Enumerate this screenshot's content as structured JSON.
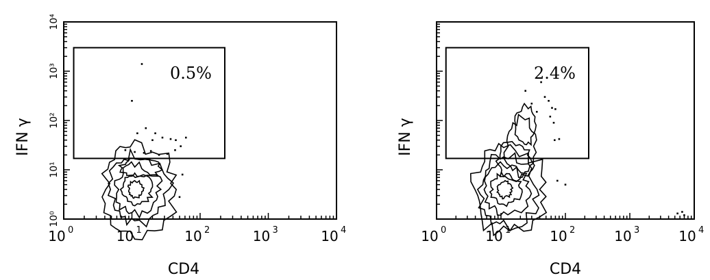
{
  "chart_data": [
    {
      "type": "scatter",
      "subtype": "flow-cytometry-contour",
      "xlabel": "CD4",
      "ylabel": "IFN γ",
      "x_scale": "log",
      "y_scale": "log",
      "xlim": [
        1,
        10000
      ],
      "ylim": [
        1,
        10000
      ],
      "x_ticks": [
        {
          "base": "10",
          "exp": "0"
        },
        {
          "base": "10",
          "exp": "1"
        },
        {
          "base": "10",
          "exp": "2"
        },
        {
          "base": "10",
          "exp": "3"
        },
        {
          "base": "10",
          "exp": "4"
        }
      ],
      "y_ticks": [
        "10⁰",
        "10¹",
        "10²",
        "10³",
        "10⁴"
      ],
      "gate": {
        "x": [
          1.4,
          230
        ],
        "y": [
          17,
          3000
        ],
        "label": "0.5%",
        "percent": 0.5
      },
      "population_center": [
        11,
        4
      ],
      "events_in_gate": [
        [
          14,
          1400
        ],
        [
          10,
          250
        ],
        [
          16,
          70
        ],
        [
          12,
          55
        ],
        [
          22,
          55
        ],
        [
          20,
          40
        ],
        [
          28,
          45
        ],
        [
          37,
          42
        ],
        [
          44,
          40
        ],
        [
          8,
          25
        ],
        [
          11,
          23
        ],
        [
          15,
          22
        ],
        [
          19,
          24
        ],
        [
          25,
          20
        ],
        [
          33,
          21
        ],
        [
          43,
          25
        ],
        [
          52,
          30
        ],
        [
          62,
          45
        ]
      ],
      "tail_events": [
        [
          50,
          2.8
        ],
        [
          55,
          8
        ]
      ]
    },
    {
      "type": "scatter",
      "subtype": "flow-cytometry-contour",
      "xlabel": "CD4",
      "ylabel": "IFN γ",
      "x_scale": "log",
      "y_scale": "log",
      "xlim": [
        1,
        10000
      ],
      "ylim": [
        1,
        10000
      ],
      "x_ticks": [
        {
          "base": "10",
          "exp": "0"
        },
        {
          "base": "10",
          "exp": "1"
        },
        {
          "base": "10",
          "exp": "2"
        },
        {
          "base": "10",
          "exp": "3"
        },
        {
          "base": "10",
          "exp": "4"
        }
      ],
      "y_ticks": [
        "",
        "",
        "",
        "",
        ""
      ],
      "gate": {
        "x": [
          1.4,
          230
        ],
        "y": [
          17,
          3000
        ],
        "label": "2.4%",
        "percent": 2.4
      },
      "population_center": [
        11,
        4
      ],
      "events_in_gate": [
        [
          42,
          600
        ],
        [
          48,
          300
        ],
        [
          55,
          250
        ],
        [
          62,
          180
        ],
        [
          70,
          170
        ],
        [
          58,
          120
        ],
        [
          36,
          150
        ],
        [
          30,
          220
        ],
        [
          68,
          40
        ],
        [
          80,
          42
        ],
        [
          66,
          90
        ],
        [
          24,
          400
        ]
      ],
      "tail_events": [
        [
          75,
          6
        ],
        [
          100,
          5
        ],
        [
          5500,
          1.3
        ],
        [
          6500,
          1.4
        ],
        [
          7000,
          1.2
        ]
      ]
    }
  ]
}
